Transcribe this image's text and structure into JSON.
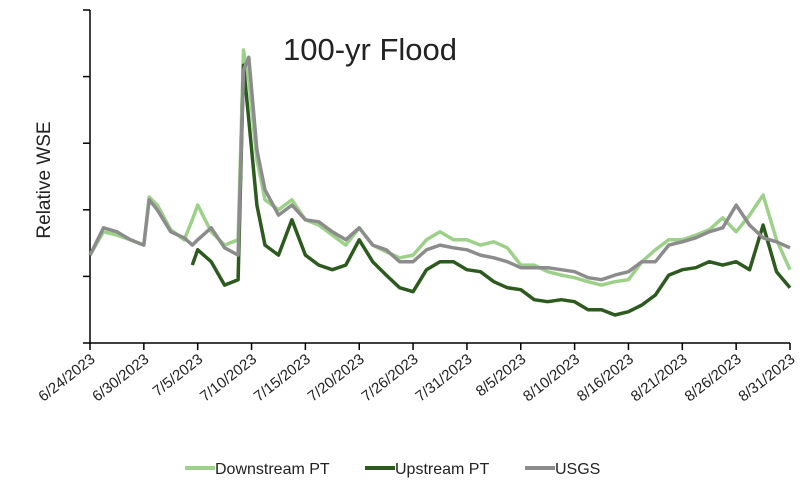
{
  "chart_data": {
    "type": "line",
    "annotation": "100-yr Flood",
    "y_label": "Relative WSE",
    "xlim": [
      0,
      13
    ],
    "xticks": [
      {
        "value": 0,
        "label": "6/24/2023"
      },
      {
        "value": 1,
        "label": "6/30/2023"
      },
      {
        "value": 2,
        "label": "7/5/2023"
      },
      {
        "value": 3,
        "label": "7/10/2023"
      },
      {
        "value": 4,
        "label": "7/15/2023"
      },
      {
        "value": 5,
        "label": "7/20/2023"
      },
      {
        "value": 6,
        "label": "7/26/2023"
      },
      {
        "value": 7,
        "label": "7/31/2023"
      },
      {
        "value": 8,
        "label": "8/5/2023"
      },
      {
        "value": 9,
        "label": "8/10/2023"
      },
      {
        "value": 10,
        "label": "8/16/2023"
      },
      {
        "value": 11,
        "label": "8/21/2023"
      },
      {
        "value": 12,
        "label": "8/26/2023"
      },
      {
        "value": 13,
        "label": "8/31/2023"
      }
    ],
    "ylim": [
      0,
      5
    ],
    "yticks": [
      0,
      1,
      2,
      3,
      4,
      5
    ],
    "x": [
      0,
      0.25,
      0.5,
      0.75,
      1,
      1.1,
      1.25,
      1.5,
      1.75,
      1.9,
      2,
      2.25,
      2.5,
      2.75,
      2.85,
      2.95,
      3.1,
      3.25,
      3.5,
      3.75,
      4,
      4.25,
      4.5,
      4.75,
      5,
      5.25,
      5.5,
      5.75,
      6,
      6.25,
      6.5,
      6.75,
      7,
      7.25,
      7.5,
      7.75,
      8,
      8.25,
      8.5,
      8.75,
      9,
      9.25,
      9.5,
      9.75,
      10,
      10.25,
      10.5,
      10.75,
      11,
      11.25,
      11.5,
      11.75,
      12,
      12.25,
      12.5,
      12.75,
      13
    ],
    "series": [
      {
        "name": "Downstream PT",
        "color": "#9dd18a",
        "values": [
          1.32,
          1.67,
          1.62,
          1.55,
          1.47,
          2.19,
          2.07,
          1.7,
          1.55,
          1.85,
          2.07,
          1.67,
          1.47,
          1.55,
          4.4,
          3.95,
          2.75,
          2.15,
          2.0,
          2.15,
          1.85,
          1.77,
          1.62,
          1.47,
          1.73,
          1.47,
          1.37,
          1.28,
          1.32,
          1.55,
          1.67,
          1.55,
          1.55,
          1.47,
          1.52,
          1.43,
          1.17,
          1.17,
          1.07,
          1.02,
          0.98,
          0.92,
          0.87,
          0.92,
          0.95,
          1.22,
          1.4,
          1.55,
          1.55,
          1.62,
          1.7,
          1.88,
          1.67,
          1.92,
          2.22,
          1.55,
          1.1
        ]
      },
      {
        "name": "Upstream PT",
        "color": "#2d5a1f",
        "values": [
          null,
          null,
          null,
          null,
          null,
          null,
          null,
          null,
          null,
          1.17,
          1.4,
          1.22,
          0.87,
          0.95,
          4.17,
          3.35,
          2.07,
          1.47,
          1.32,
          1.85,
          1.32,
          1.17,
          1.1,
          1.17,
          1.55,
          1.22,
          1.02,
          0.83,
          0.77,
          1.1,
          1.22,
          1.22,
          1.1,
          1.07,
          0.92,
          0.83,
          0.8,
          0.65,
          0.62,
          0.65,
          0.62,
          0.5,
          0.5,
          0.42,
          0.47,
          0.57,
          0.72,
          1.02,
          1.1,
          1.13,
          1.22,
          1.17,
          1.22,
          1.1,
          1.77,
          1.07,
          0.83
        ]
      },
      {
        "name": "USGS",
        "color": "#8c8c8c",
        "values": [
          1.32,
          1.73,
          1.67,
          1.55,
          1.47,
          2.15,
          2.0,
          1.67,
          1.58,
          1.47,
          1.55,
          1.73,
          1.43,
          1.32,
          4.1,
          4.29,
          2.9,
          2.3,
          1.92,
          2.07,
          1.85,
          1.82,
          1.67,
          1.55,
          1.73,
          1.47,
          1.4,
          1.22,
          1.22,
          1.4,
          1.47,
          1.43,
          1.4,
          1.32,
          1.28,
          1.22,
          1.13,
          1.13,
          1.13,
          1.1,
          1.07,
          0.98,
          0.95,
          1.02,
          1.07,
          1.22,
          1.22,
          1.47,
          1.52,
          1.58,
          1.67,
          1.73,
          2.07,
          1.77,
          1.58,
          1.52,
          1.43
        ]
      }
    ]
  }
}
